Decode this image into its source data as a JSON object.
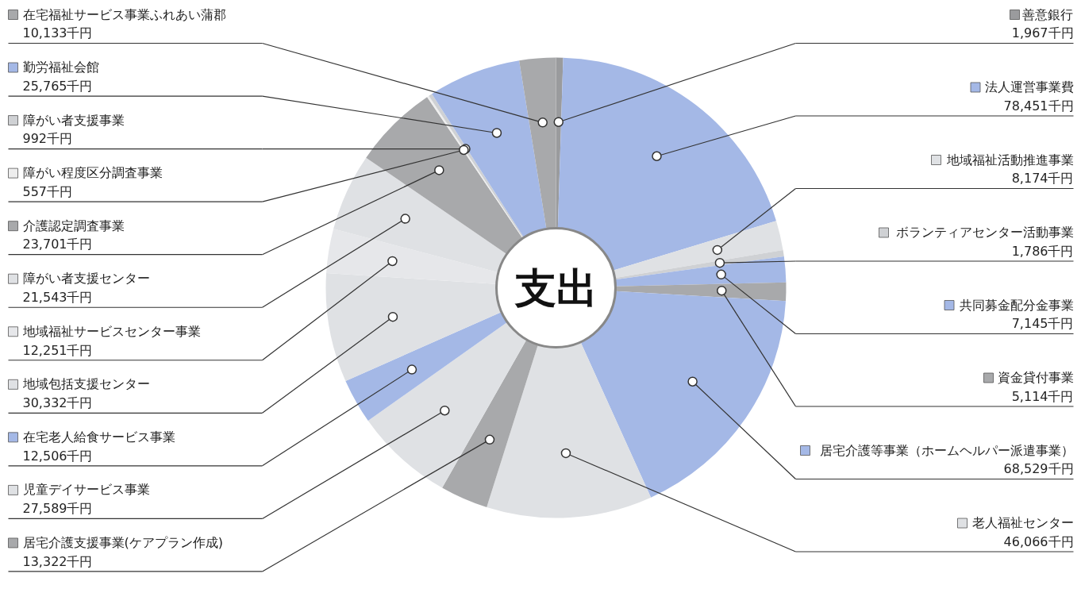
{
  "chart_data": {
    "type": "donut",
    "title": "支出",
    "legend": "left",
    "categories": [
      "善意銀行",
      "法人運営事業費",
      "地域福祉活動推進事業",
      "ボランティアセンター活動事業",
      "共同募金配分金事業",
      "資金貸付事業",
      "居宅介護等事業（ホームヘルパー派遣事業）",
      "老人福祉センター",
      "居宅介護支援事業(ケアプラン作成)",
      "児童デイサービス事業",
      "在宅老人給食サービス事業",
      "地域包括支援センター",
      "地域福祉サービスセンター事業",
      "障がい者支援センター",
      "介護認定調査事業",
      "障がい程度区分調査事業",
      "障がい者支援事業",
      "勤労福祉会館",
      "在宅福祉サービス事業ふれあい蒲郡"
    ],
    "values": [
      1967,
      78451,
      8174,
      1786,
      7145,
      5114,
      68529,
      46066,
      13322,
      27589,
      12506,
      30332,
      12251,
      21543,
      23701,
      557,
      992,
      25765,
      10133
    ],
    "value_labels": [
      "1,967千円",
      "78,451千円",
      "8,174千円",
      "1,786千円",
      "7,145千円",
      "5,114千円",
      "68,529千円",
      "46,066千円",
      "13,322千円",
      "27,589千円",
      "12,506千円",
      "30,332千円",
      "12,251千円",
      "21,543千円",
      "23,701千円",
      "557千円",
      "992千円",
      "25,765千円",
      "10,133千円"
    ],
    "colors": [
      "#9a9b9d",
      "#a4b8e6",
      "#dfe1e4",
      "#cfd1d4",
      "#a4b8e6",
      "#a8a9ab",
      "#a4b8e6",
      "#dfe1e4",
      "#a8a9ab",
      "#dfe1e4",
      "#a4b8e6",
      "#dfe1e4",
      "#e6e7ea",
      "#dfe1e4",
      "#a8a9ab",
      "#eeeeee",
      "#cfd1d4",
      "#a4b8e6",
      "#a8a9ab"
    ]
  }
}
